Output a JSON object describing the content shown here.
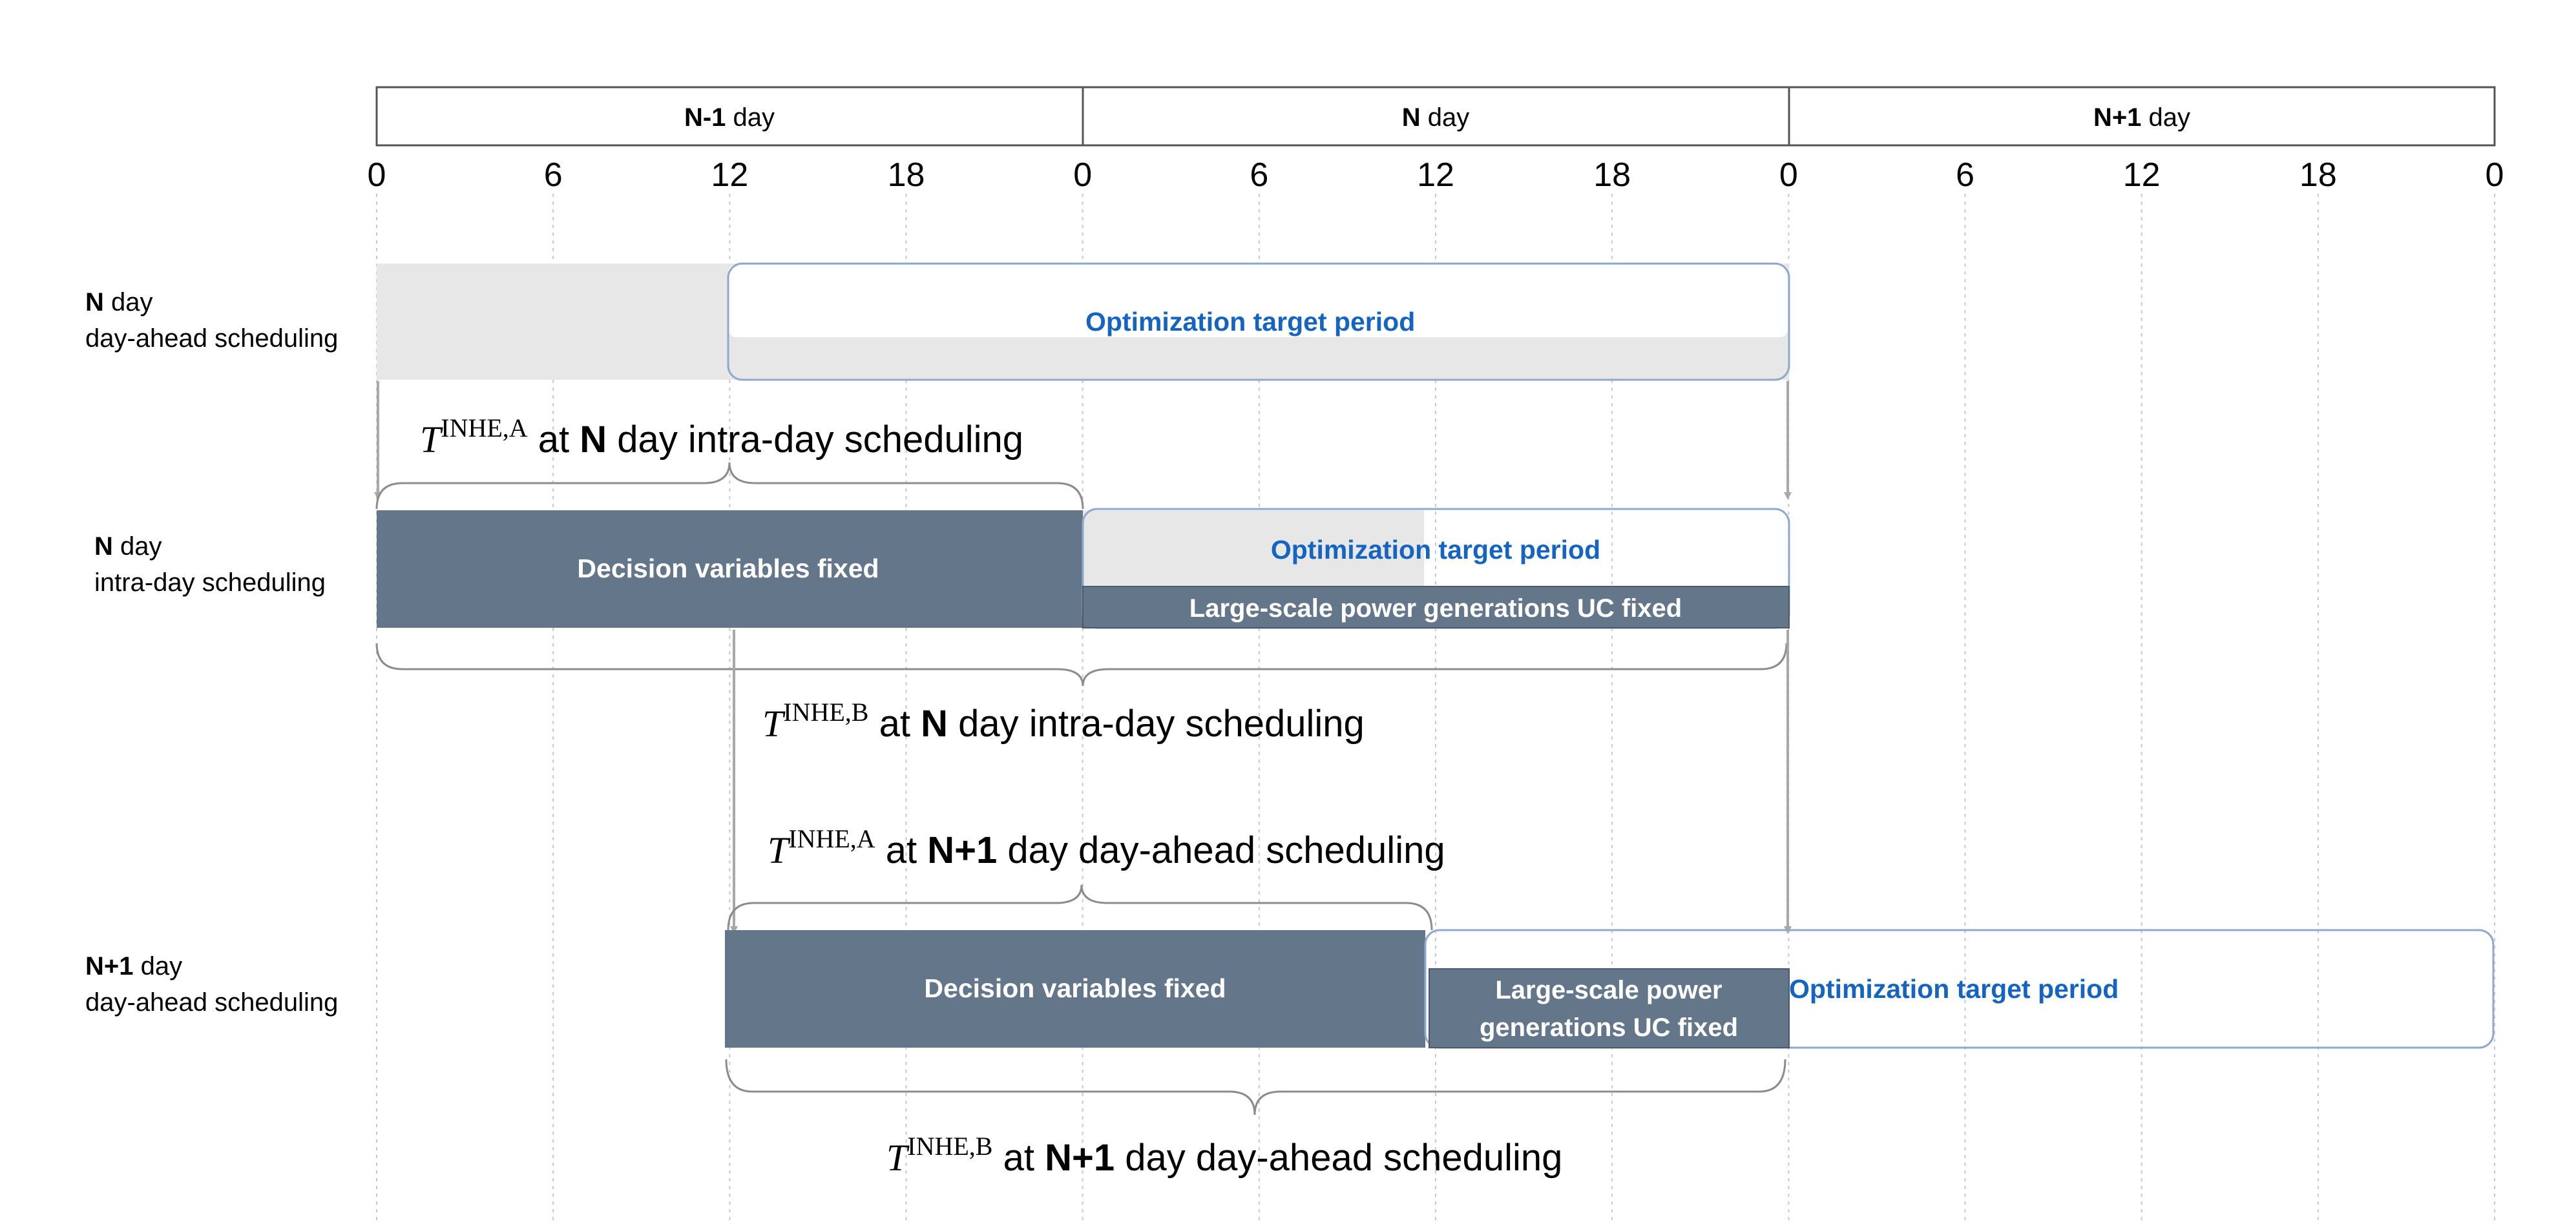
{
  "timeline": {
    "days": [
      {
        "bold": "N-1",
        "suffix": " day"
      },
      {
        "bold": "N",
        "suffix": " day"
      },
      {
        "bold": "N+1",
        "suffix": " day"
      }
    ],
    "hour_ticks": [
      "0",
      "6",
      "12",
      "18",
      "0",
      "6",
      "12",
      "18",
      "0",
      "6",
      "12",
      "18",
      "0"
    ]
  },
  "rows": [
    {
      "bold": "N",
      "line1_suffix": " day",
      "line2": "day-ahead scheduling"
    },
    {
      "bold": "N",
      "line1_suffix": " day",
      "line2": "intra-day scheduling"
    },
    {
      "bold": "N+1",
      "line1_suffix": " day",
      "line2": "day-ahead scheduling"
    }
  ],
  "bars": {
    "optimization_label": "Optimization target period",
    "decision_fixed_label": "Decision variables fixed",
    "uc_fixed_label": "Large-scale power generations UC fixed",
    "uc_fixed_line1": "Large-scale power",
    "uc_fixed_line2": "generations UC fixed"
  },
  "braces": {
    "symbol": "T",
    "sup_a": "INHE,A",
    "sup_b": "INHE,B",
    "at": " at ",
    "n": "N",
    "n1": "N+1",
    "intra_day": " day intra-day scheduling",
    "day_ahead": " day day-ahead scheduling"
  },
  "colors": {
    "dark_fill": "#64778a",
    "light_fill": "#e7e7e7",
    "accent_blue": "#1565c0",
    "outline_blue": "#8fa8cf",
    "grid": "#c8c8c8",
    "arrow": "#a8a8a8"
  }
}
